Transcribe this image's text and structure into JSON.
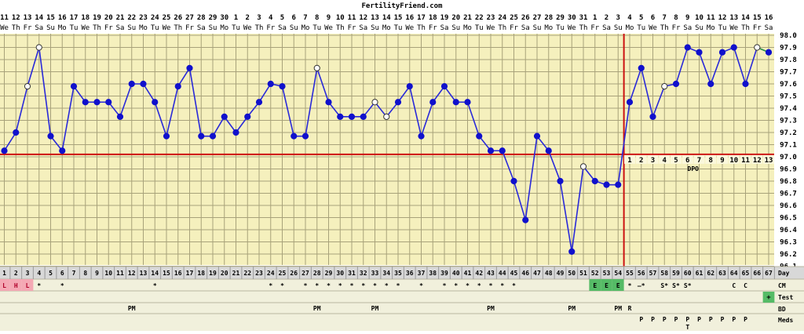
{
  "site": "FertilityFriend.com",
  "colors": {
    "plot_bg": "#f5f0bd",
    "grid": "#a8a27a",
    "temp_line": "#2a2ad8",
    "marker": "#1010cc",
    "coverline": "#cc1111",
    "ovulation_line": "#cc1111",
    "period_bg": "#f4a8b4",
    "cm_egg_bg": "#55bb66",
    "test_pos_bg": "#55bb66",
    "row_bg": "#f1f0dc",
    "day_row_bg": "#d8d8d8"
  },
  "header": {
    "dates": [
      "11",
      "12",
      "13",
      "14",
      "15",
      "16",
      "17",
      "18",
      "19",
      "20",
      "21",
      "22",
      "23",
      "24",
      "25",
      "26",
      "27",
      "28",
      "29",
      "30",
      "1",
      "2",
      "3",
      "4",
      "5",
      "6",
      "7",
      "8",
      "9",
      "10",
      "11",
      "12",
      "13",
      "14",
      "15",
      "16",
      "17",
      "18",
      "19",
      "20",
      "21",
      "22",
      "23",
      "24",
      "25",
      "26",
      "27",
      "28",
      "29",
      "30",
      "31",
      "1",
      "2",
      "3",
      "4",
      "5",
      "6",
      "7",
      "8",
      "9",
      "10",
      "11",
      "12",
      "13",
      "14",
      "15",
      "16"
    ],
    "weekdays": [
      "We",
      "Th",
      "Fr",
      "Sa",
      "Su",
      "Mo",
      "Tu",
      "We",
      "Th",
      "Fr",
      "Sa",
      "Su",
      "Mo",
      "Tu",
      "We",
      "Th",
      "Fr",
      "Sa",
      "Su",
      "Mo",
      "Tu",
      "We",
      "Th",
      "Fr",
      "Sa",
      "Su",
      "Mo",
      "Tu",
      "We",
      "Th",
      "Fr",
      "Sa",
      "Su",
      "Mo",
      "Tu",
      "We",
      "Th",
      "Fr",
      "Sa",
      "Su",
      "Mo",
      "Tu",
      "We",
      "Th",
      "Fr",
      "Sa",
      "Su",
      "Mo",
      "Tu",
      "We",
      "Th",
      "Fr",
      "Sa",
      "Su",
      "Mo",
      "Tu",
      "We",
      "Th",
      "Fr",
      "Sa",
      "Su",
      "Mo",
      "Tu",
      "We",
      "Th",
      "Fr",
      "Sa"
    ]
  },
  "chart_data": {
    "type": "line",
    "title": "FertilityFriend.com",
    "x_label": "Day",
    "y_unit": "°F",
    "ylim": [
      96.1,
      98.0
    ],
    "y_ticks": [
      "98.0",
      "97.9",
      "97.8",
      "97.7",
      "97.6",
      "97.5",
      "97.4",
      "97.3",
      "97.2",
      "97.1",
      "97.0",
      "96.9",
      "96.8",
      "96.7",
      "96.6",
      "96.5",
      "96.4",
      "96.3",
      "96.2",
      "96.1"
    ],
    "grid": true,
    "cycle_days": [
      1,
      2,
      3,
      4,
      5,
      6,
      7,
      8,
      9,
      10,
      11,
      12,
      13,
      14,
      15,
      16,
      17,
      18,
      19,
      20,
      21,
      22,
      23,
      24,
      25,
      26,
      27,
      28,
      29,
      30,
      31,
      32,
      33,
      34,
      35,
      36,
      37,
      38,
      39,
      40,
      41,
      42,
      43,
      44,
      45,
      46,
      47,
      48,
      49,
      50,
      51,
      52,
      53,
      54,
      55,
      56,
      57,
      58,
      59,
      60,
      61,
      62,
      63,
      64,
      65,
      66,
      67
    ],
    "temperatures": [
      97.05,
      97.2,
      97.58,
      97.9,
      97.17,
      97.05,
      97.58,
      97.45,
      97.45,
      97.45,
      97.33,
      97.6,
      97.6,
      97.45,
      97.17,
      97.58,
      97.73,
      97.17,
      97.17,
      97.33,
      97.2,
      97.33,
      97.45,
      97.6,
      97.58,
      97.17,
      97.17,
      97.73,
      97.45,
      97.33,
      97.33,
      97.33,
      97.45,
      97.33,
      97.45,
      97.58,
      97.17,
      97.45,
      97.58,
      97.45,
      97.45,
      97.17,
      97.05,
      97.05,
      96.8,
      96.48,
      97.17,
      97.05,
      96.8,
      96.22,
      96.92,
      96.8,
      96.77,
      96.77,
      97.45,
      97.73,
      97.33,
      97.58,
      97.6,
      97.9,
      97.86,
      97.6,
      97.86,
      97.9,
      97.6,
      97.9,
      97.86
    ],
    "open_markers_days": [
      3,
      4,
      28,
      33,
      34,
      51,
      58,
      66
    ],
    "coverline": 97.02,
    "ovulation_day": 54,
    "dpo_labels": [
      "1",
      "2",
      "3",
      "4",
      "5",
      "6",
      "7",
      "8",
      "9",
      "10",
      "11",
      "12",
      "13"
    ],
    "dpo_label": "DPO"
  },
  "rows": {
    "labels": [
      "Day",
      "CM",
      "Test",
      "BD",
      "Meds"
    ],
    "period": {
      "1": "L",
      "2": "H",
      "3": "L"
    },
    "cm": {
      "4": "*",
      "6": "*",
      "14": "*",
      "24": "*",
      "25": "*",
      "27": "*",
      "28": "*",
      "29": "*",
      "30": "*",
      "31": "*",
      "32": "*",
      "33": "*",
      "34": "*",
      "35": "*",
      "37": "*",
      "39": "*",
      "40": "*",
      "41": "*",
      "42": "*",
      "43": "*",
      "44": "*",
      "45": "*",
      "52": "E",
      "53": "E",
      "54": "E",
      "55": "*",
      "56": "—*",
      "58": "S*",
      "59": "S*",
      "60": "S*",
      "64": "C",
      "65": "C"
    },
    "test": {
      "67": "+"
    },
    "bd": {
      "12": "PM",
      "28": "PM",
      "33": "PM",
      "43": "PM",
      "50": "PM",
      "54": "PM",
      "55": "R"
    },
    "meds": {
      "56": "P",
      "57": "P",
      "58": "P",
      "59": "P",
      "60": "P",
      "61": "P",
      "62": "P",
      "63": "P",
      "64": "P",
      "65": "P"
    },
    "meds2": {
      "60": "T"
    }
  }
}
